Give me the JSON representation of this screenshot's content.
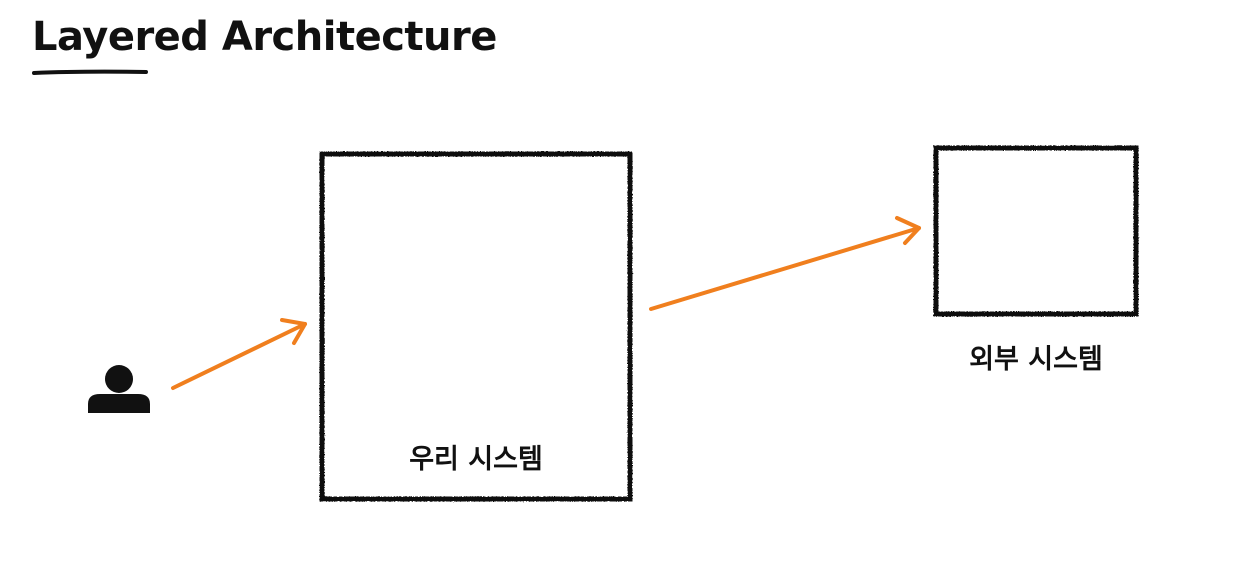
{
  "title": "Layered Architecture",
  "colors": {
    "ink": "#111111",
    "arrow": "#f07f1e",
    "background": "#ffffff"
  },
  "nodes": {
    "user": {
      "icon": "user-icon"
    },
    "our_system": {
      "label": "우리 시스템"
    },
    "external_system": {
      "label": "외부 시스템"
    }
  },
  "edges": [
    {
      "from": "user",
      "to": "our_system"
    },
    {
      "from": "our_system",
      "to": "external_system"
    }
  ]
}
